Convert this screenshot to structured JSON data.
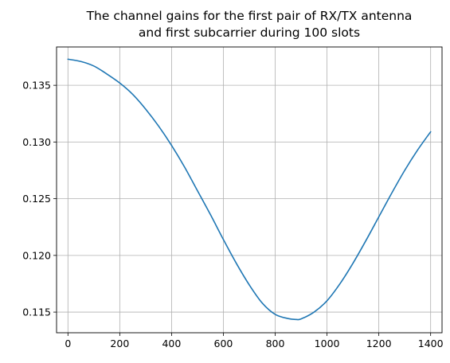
{
  "chart_data": {
    "type": "line",
    "title_lines": [
      "The channel gains for the first pair of RX/TX antenna",
      "and first subcarrier during 100 slots"
    ],
    "xlabel": "",
    "ylabel": "",
    "xlim": [
      -44,
      1444
    ],
    "ylim": [
      0.11318,
      0.13838
    ],
    "x_ticks": [
      0,
      200,
      400,
      600,
      800,
      1000,
      1200,
      1400
    ],
    "x_tick_labels": [
      "0",
      "200",
      "400",
      "600",
      "800",
      "1000",
      "1200",
      "1400"
    ],
    "y_ticks": [
      0.115,
      0.12,
      0.125,
      0.13,
      0.135
    ],
    "y_tick_labels": [
      "0.115",
      "0.120",
      "0.125",
      "0.130",
      "0.135"
    ],
    "grid": true,
    "legend": "none",
    "series": [
      {
        "color": "#1f77b4",
        "x": [
          0,
          50,
          100,
          150,
          200,
          250,
          300,
          350,
          400,
          450,
          500,
          550,
          600,
          650,
          700,
          750,
          800,
          850,
          880,
          900,
          950,
          1000,
          1050,
          1100,
          1150,
          1200,
          1250,
          1300,
          1350,
          1400
        ],
        "y": [
          0.1373,
          0.1371,
          0.1367,
          0.136,
          0.1352,
          0.1342,
          0.1329,
          0.1314,
          0.1297,
          0.1278,
          0.1257,
          0.1236,
          0.1214,
          0.1193,
          0.1174,
          0.1158,
          0.1148,
          0.11443,
          0.11435,
          0.1144,
          0.115,
          0.116,
          0.1175,
          0.1193,
          0.1213,
          0.1234,
          0.1255,
          0.1275,
          0.1293,
          0.1309
        ]
      }
    ]
  }
}
